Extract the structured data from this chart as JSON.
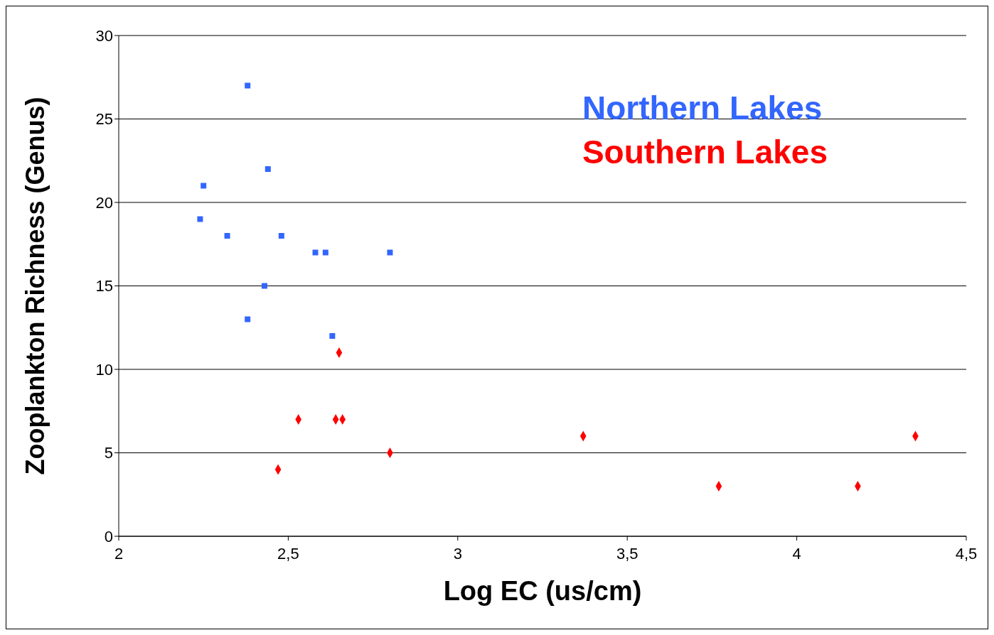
{
  "chart_data": {
    "type": "scatter",
    "xlabel": "Log EC (us/cm)",
    "ylabel": "Zooplankton Richness (Genus)",
    "xlim": [
      2,
      4.5
    ],
    "xticks": [
      2,
      {
        "value": 2.5,
        "label": "2,5"
      },
      3,
      {
        "value": 3.5,
        "label": "3,5"
      },
      4,
      {
        "value": 4.5,
        "label": "4,5"
      }
    ],
    "ylim": [
      0,
      30
    ],
    "yticks": [
      0,
      5,
      10,
      15,
      20,
      25,
      30
    ],
    "grid": "y",
    "legend": "top right",
    "series": [
      {
        "name": "Northern Lakes",
        "color": "#3366ff",
        "marker": "square",
        "x": [
          2.24,
          2.25,
          2.38,
          2.44,
          2.32,
          2.48,
          2.58,
          2.61,
          2.8,
          2.43,
          2.38,
          2.63
        ],
        "values": [
          19,
          21,
          27,
          22,
          18,
          18,
          17,
          17,
          17,
          15,
          13,
          12
        ]
      },
      {
        "name": "Southern Lakes",
        "color": "#ff0000",
        "marker": "diamond",
        "x": [
          2.65,
          2.53,
          2.64,
          2.66,
          2.47,
          2.8,
          3.37,
          3.77,
          4.18,
          4.35
        ],
        "values": [
          11,
          7,
          7,
          7,
          4,
          5,
          6,
          3,
          3,
          6
        ]
      }
    ]
  }
}
